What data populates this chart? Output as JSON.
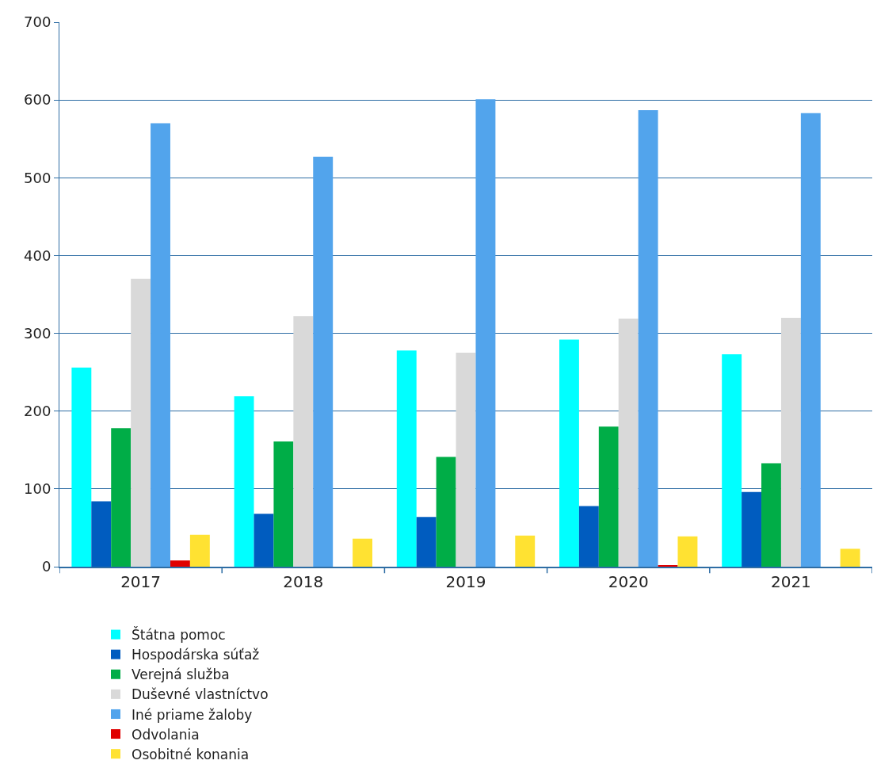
{
  "chart_data": {
    "type": "bar",
    "categories": [
      "2017",
      "2018",
      "2019",
      "2020",
      "2021"
    ],
    "series": [
      {
        "name": "Štátna pomoc",
        "color": "#00ffff",
        "values": [
          256,
          219,
          278,
          292,
          273
        ]
      },
      {
        "name": "Hospodárska súťaž",
        "color": "#005cbf",
        "values": [
          84,
          68,
          64,
          78,
          96
        ]
      },
      {
        "name": "Verejná služba",
        "color": "#00ad47",
        "values": [
          178,
          161,
          141,
          180,
          133
        ]
      },
      {
        "name": "Duševné vlastníctvo",
        "color": "#d9d9d9",
        "values": [
          370,
          322,
          275,
          319,
          320
        ]
      },
      {
        "name": "Iné priame žaloby",
        "color": "#52a4ec",
        "values": [
          570,
          527,
          601,
          587,
          583
        ]
      },
      {
        "name": "Odvolania",
        "color": "#e00000",
        "values": [
          8,
          0,
          0,
          2,
          0
        ]
      },
      {
        "name": "Osobitné konania",
        "color": "#ffe232",
        "values": [
          41,
          36,
          40,
          39,
          23
        ]
      }
    ],
    "ylim": [
      0,
      700
    ],
    "yticks": [
      0,
      100,
      200,
      300,
      400,
      500,
      600,
      700
    ],
    "grid": "y",
    "legend": "bottom"
  }
}
